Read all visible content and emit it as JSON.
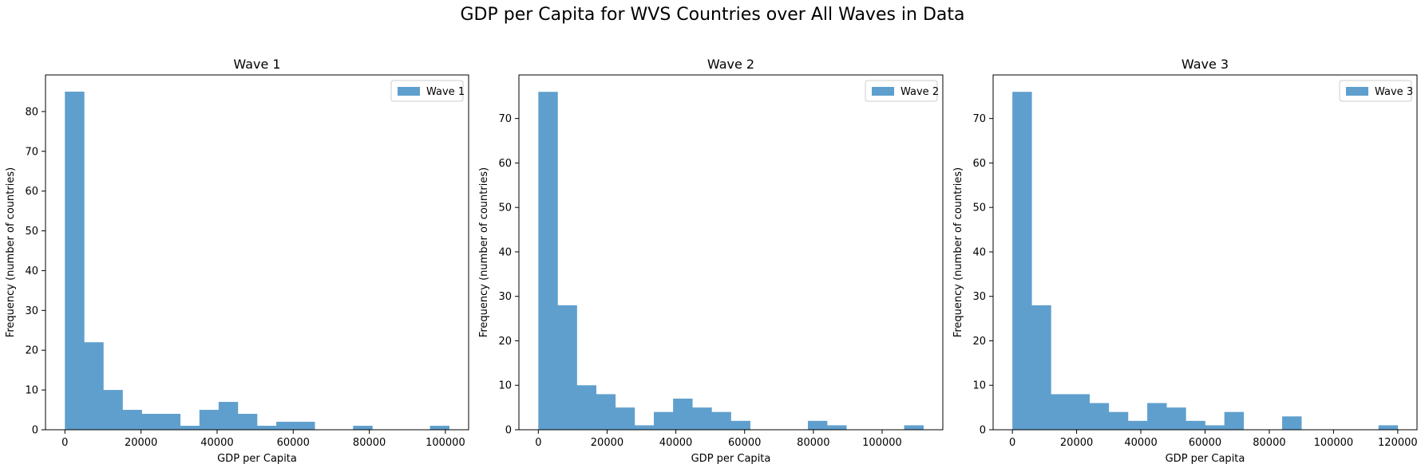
{
  "figure": {
    "suptitle": "GDP per Capita for WVS Countries over All Waves in Data"
  },
  "chart_data": [
    {
      "type": "bar",
      "title": "Wave 1",
      "xlabel": "GDP per Capita",
      "ylabel": "Frequency (number of countries)",
      "legend": {
        "position": "top-right",
        "entries": [
          "Wave 1"
        ]
      },
      "color": "#5f9fcd",
      "xlim": [
        -5100,
        106100
      ],
      "ylim": [
        0,
        89.2
      ],
      "xticks": [
        0,
        20000,
        40000,
        60000,
        80000,
        100000
      ],
      "xtick_labels": [
        "0",
        "20000",
        "40000",
        "60000",
        "80000",
        "100000"
      ],
      "yticks": [
        0,
        10,
        20,
        30,
        40,
        50,
        60,
        70,
        80
      ],
      "ytick_labels": [
        "0",
        "10",
        "20",
        "30",
        "40",
        "50",
        "60",
        "70",
        "80"
      ],
      "bin_start": 0,
      "bin_width": 5050,
      "series": [
        {
          "name": "Wave 1",
          "values": [
            85,
            22,
            10,
            5,
            4,
            4,
            1,
            5,
            7,
            4,
            1,
            2,
            2,
            0,
            0,
            1,
            0,
            0,
            0,
            1
          ]
        }
      ]
    },
    {
      "type": "bar",
      "title": "Wave 2",
      "xlabel": "GDP per Capita",
      "ylabel": "Frequency (number of countries)",
      "legend": {
        "position": "top-right",
        "entries": [
          "Wave 2"
        ]
      },
      "color": "#5f9fcd",
      "xlim": [
        -5650,
        117650
      ],
      "ylim": [
        0,
        79.8
      ],
      "xticks": [
        0,
        20000,
        40000,
        60000,
        80000,
        100000
      ],
      "xtick_labels": [
        "0",
        "20000",
        "40000",
        "60000",
        "80000",
        "100000"
      ],
      "yticks": [
        0,
        10,
        20,
        30,
        40,
        50,
        60,
        70
      ],
      "ytick_labels": [
        "0",
        "10",
        "20",
        "30",
        "40",
        "50",
        "60",
        "70"
      ],
      "bin_start": 0,
      "bin_width": 5600,
      "series": [
        {
          "name": "Wave 2",
          "values": [
            76,
            28,
            10,
            8,
            5,
            1,
            4,
            7,
            5,
            4,
            2,
            0,
            0,
            0,
            2,
            1,
            0,
            0,
            0,
            1
          ]
        }
      ]
    },
    {
      "type": "bar",
      "title": "Wave 3",
      "xlabel": "GDP per Capita",
      "ylabel": "Frequency (number of countries)",
      "legend": {
        "position": "top-right",
        "entries": [
          "Wave 3"
        ]
      },
      "color": "#5f9fcd",
      "xlim": [
        -6000,
        126000
      ],
      "ylim": [
        0,
        79.8
      ],
      "xticks": [
        0,
        20000,
        40000,
        60000,
        80000,
        100000,
        120000
      ],
      "xtick_labels": [
        "0",
        "20000",
        "40000",
        "60000",
        "80000",
        "100000",
        "120000"
      ],
      "yticks": [
        0,
        10,
        20,
        30,
        40,
        50,
        60,
        70
      ],
      "ytick_labels": [
        "0",
        "10",
        "20",
        "30",
        "40",
        "50",
        "60",
        "70"
      ],
      "bin_start": 0,
      "bin_width": 6000,
      "series": [
        {
          "name": "Wave 3",
          "values": [
            76,
            28,
            8,
            8,
            6,
            4,
            2,
            6,
            5,
            2,
            1,
            4,
            0,
            0,
            3,
            0,
            0,
            0,
            0,
            1
          ]
        }
      ]
    }
  ]
}
